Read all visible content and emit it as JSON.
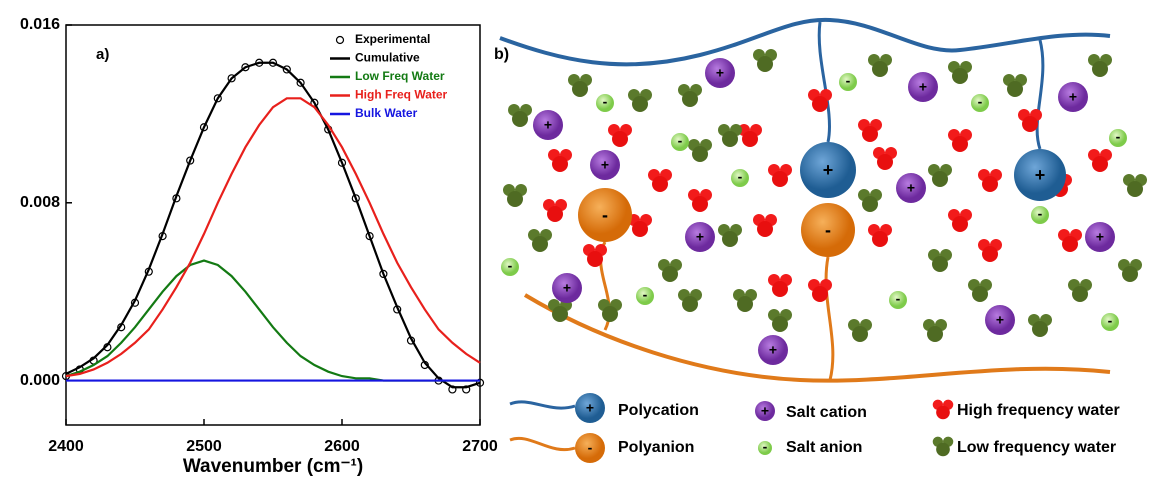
{
  "chart_data": {
    "type": "line",
    "annotation": "a)",
    "xlabel": "Wavenumber (cm⁻¹)",
    "x": [
      2400,
      2410,
      2420,
      2430,
      2440,
      2450,
      2460,
      2470,
      2480,
      2490,
      2500,
      2510,
      2520,
      2530,
      2540,
      2550,
      2560,
      2570,
      2580,
      2590,
      2600,
      2610,
      2620,
      2630,
      2640,
      2650,
      2660,
      2670,
      2680,
      2690,
      2700
    ],
    "series": [
      {
        "name": "Experimental",
        "color": "#000000",
        "mode": "markers",
        "values": [
          0.0002,
          0.0005,
          0.0009,
          0.0015,
          0.0024,
          0.0035,
          0.0049,
          0.0065,
          0.0082,
          0.0099,
          0.0114,
          0.0127,
          0.0136,
          0.0141,
          0.0143,
          0.0143,
          0.014,
          0.0134,
          0.0125,
          0.0113,
          0.0098,
          0.0082,
          0.0065,
          0.0048,
          0.0032,
          0.0018,
          0.0007,
          0.0,
          -0.0004,
          -0.0004,
          -0.0001
        ]
      },
      {
        "name": "Cumulative",
        "color": "#000000",
        "mode": "line",
        "values": [
          0.0003,
          0.0006,
          0.001,
          0.0016,
          0.0025,
          0.0036,
          0.005,
          0.0066,
          0.0083,
          0.0099,
          0.0114,
          0.0127,
          0.0136,
          0.0141,
          0.0143,
          0.0143,
          0.014,
          0.0134,
          0.0125,
          0.0113,
          0.0098,
          0.0082,
          0.0065,
          0.0048,
          0.0033,
          0.0019,
          0.0008,
          0.0001,
          -0.0003,
          -0.0003,
          -0.0001
        ]
      },
      {
        "name": "Low Freq Water",
        "color": "#137a13",
        "mode": "line",
        "values": [
          0.0002,
          0.0004,
          0.0007,
          0.0011,
          0.0017,
          0.0024,
          0.0032,
          0.004,
          0.0047,
          0.0052,
          0.0054,
          0.0052,
          0.0047,
          0.004,
          0.0032,
          0.0024,
          0.0017,
          0.0011,
          0.0007,
          0.0004,
          0.0002,
          0.0001,
          0.0001,
          0,
          0,
          0,
          0,
          0,
          0,
          0,
          0
        ]
      },
      {
        "name": "High Freq Water",
        "color": "#e8201c",
        "mode": "line",
        "values": [
          0.0002,
          0.0003,
          0.0005,
          0.0008,
          0.0012,
          0.0017,
          0.0023,
          0.0032,
          0.0042,
          0.0053,
          0.0066,
          0.008,
          0.0093,
          0.0105,
          0.0115,
          0.0123,
          0.0127,
          0.0127,
          0.0123,
          0.0115,
          0.0105,
          0.0093,
          0.008,
          0.0066,
          0.0053,
          0.0042,
          0.0032,
          0.0023,
          0.0017,
          0.0012,
          0.0008
        ]
      },
      {
        "name": "Bulk Water",
        "color": "#1515e0",
        "mode": "line",
        "values": [
          0,
          0,
          0,
          0,
          0,
          0,
          0,
          0,
          0,
          0,
          0,
          0,
          0,
          0,
          0,
          0,
          0,
          0,
          0,
          0,
          0,
          0,
          0,
          0,
          0,
          0,
          0,
          0,
          0,
          0,
          0
        ]
      }
    ],
    "xlim": [
      2400,
      2700
    ],
    "xticks": [
      2400,
      2500,
      2600,
      2700
    ],
    "ylim": [
      -0.002,
      0.016
    ],
    "yticks": [
      {
        "value": 0,
        "label": "0.000"
      },
      {
        "value": 0.008,
        "label": "0.008"
      },
      0.016
    ],
    "legend": "upper right"
  },
  "diagram": {
    "label": "b)",
    "signs": {
      "plus": "+",
      "minus": "-"
    },
    "legend": [
      "Polycation",
      "Polyanion",
      "Salt cation",
      "Salt anion",
      "High frequency water",
      "Low frequency water"
    ]
  }
}
